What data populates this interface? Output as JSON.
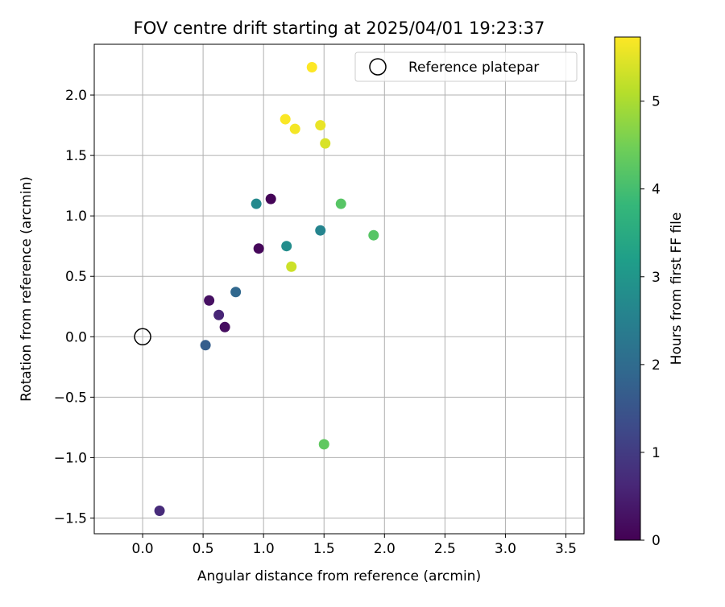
{
  "chart_data": {
    "type": "scatter",
    "title": "FOV centre drift starting at 2025/04/01 19:23:37",
    "xlabel": "Angular distance from reference (arcmin)",
    "ylabel": "Rotation from reference (arcmin)",
    "xlim": [
      -0.4,
      3.65
    ],
    "ylim": [
      -1.63,
      2.42
    ],
    "grid": true,
    "legend": {
      "placement": "top-right",
      "entries": [
        "Reference platepar"
      ]
    },
    "xticks": [
      0.0,
      0.5,
      1.0,
      1.5,
      2.0,
      2.5,
      3.0,
      3.5
    ],
    "xtick_labels": [
      "0.0",
      "0.5",
      "1.0",
      "1.5",
      "2.0",
      "2.5",
      "3.0",
      "3.5"
    ],
    "yticks": [
      -1.5,
      -1.0,
      -0.5,
      0.0,
      0.5,
      1.0,
      1.5,
      2.0
    ],
    "ytick_labels": [
      "−1.5",
      "−1.0",
      "−0.5",
      "0.0",
      "0.5",
      "1.0",
      "1.5",
      "2.0"
    ],
    "reference": {
      "x": 0.0,
      "y": 0.0,
      "label": "Reference platepar"
    },
    "colorbar": {
      "label": "Hours from first FF file",
      "range": [
        0,
        5.73
      ],
      "ticks": [
        0,
        1,
        2,
        3,
        4,
        5
      ],
      "tick_labels": [
        "0",
        "1",
        "2",
        "3",
        "4",
        "5"
      ],
      "colormap": "viridis",
      "colors": [
        "#440154",
        "#482878",
        "#3e4a89",
        "#31688e",
        "#26828e",
        "#1f9e89",
        "#35b779",
        "#6ece58",
        "#b5de2b",
        "#fde725"
      ]
    },
    "points": [
      {
        "x": 1.06,
        "y": 1.14,
        "c": 0.05
      },
      {
        "x": 0.96,
        "y": 0.73,
        "c": 0.1
      },
      {
        "x": 0.55,
        "y": 0.3,
        "c": 0.25
      },
      {
        "x": 0.68,
        "y": 0.08,
        "c": 0.2
      },
      {
        "x": 0.63,
        "y": 0.18,
        "c": 0.6
      },
      {
        "x": 0.14,
        "y": -1.44,
        "c": 0.7
      },
      {
        "x": 0.52,
        "y": -0.07,
        "c": 1.7
      },
      {
        "x": 0.77,
        "y": 0.37,
        "c": 1.9
      },
      {
        "x": 0.94,
        "y": 1.1,
        "c": 2.7
      },
      {
        "x": 1.19,
        "y": 0.75,
        "c": 2.8
      },
      {
        "x": 1.47,
        "y": 0.88,
        "c": 2.6
      },
      {
        "x": 1.64,
        "y": 1.1,
        "c": 4.2
      },
      {
        "x": 1.91,
        "y": 0.84,
        "c": 4.2
      },
      {
        "x": 1.5,
        "y": -0.89,
        "c": 4.3
      },
      {
        "x": 1.23,
        "y": 0.58,
        "c": 5.3
      },
      {
        "x": 1.51,
        "y": 1.6,
        "c": 5.4
      },
      {
        "x": 1.47,
        "y": 1.75,
        "c": 5.55
      },
      {
        "x": 1.26,
        "y": 1.72,
        "c": 5.65
      },
      {
        "x": 1.18,
        "y": 1.8,
        "c": 5.7
      },
      {
        "x": 1.4,
        "y": 2.23,
        "c": 5.73
      }
    ]
  }
}
